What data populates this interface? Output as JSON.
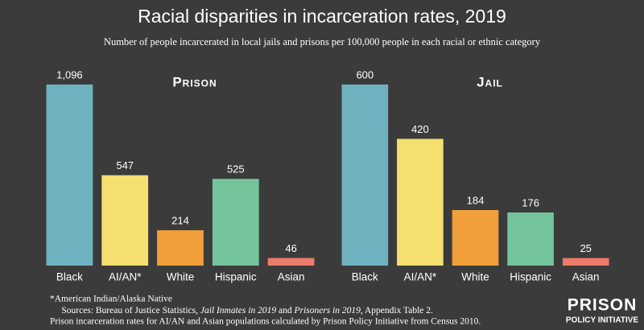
{
  "title": "Racial disparities in incarceration rates, 2019",
  "subtitle": "Number of people incarcerated in local jails and prisons per 100,000 people in each racial or ethnic category",
  "chart_data": [
    {
      "type": "bar",
      "title": "Prison",
      "categories": [
        "Black",
        "AI/AN*",
        "White",
        "Hispanic",
        "Asian"
      ],
      "values": [
        1096,
        547,
        214,
        525,
        46
      ],
      "value_labels": [
        "1,096",
        "547",
        "214",
        "525",
        "46"
      ],
      "colors": [
        "#6fb2bf",
        "#f4df6f",
        "#f09f3a",
        "#74c49b",
        "#ec7b6b"
      ],
      "ylim": [
        0,
        1096
      ]
    },
    {
      "type": "bar",
      "title": "Jail",
      "categories": [
        "Black",
        "AI/AN*",
        "White",
        "Hispanic",
        "Asian"
      ],
      "values": [
        600,
        420,
        184,
        176,
        25
      ],
      "colors": [
        "#6fb2bf",
        "#f4df6f",
        "#f09f3a",
        "#74c49b",
        "#ec7b6b"
      ],
      "ylim": [
        0,
        600
      ]
    }
  ],
  "notes": {
    "footnote": "*American Indian/Alaska Native",
    "sources": [
      "Sources: Bureau of Justice Statistics, ",
      "Jail Inmates in 2019",
      " and ",
      "Prisoners in 2019",
      ", Appendix Table 2."
    ],
    "method": "Prison incarceration rates for AI/AN and Asian populations calculated by Prison Policy Initiative from Census 2010."
  },
  "logo": {
    "line1": "PRISON",
    "line2": "POLICY INITIATIVE"
  }
}
